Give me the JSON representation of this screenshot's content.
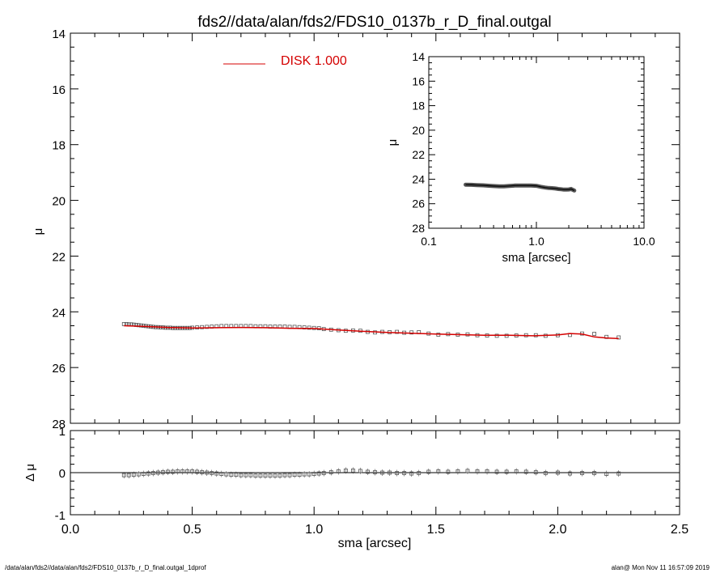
{
  "title": "fds2//data/alan/fds2/FDS10_0137b_r_D_final.outgal",
  "footer": {
    "left": "/data/alan/fds2//data/alan/fds2/FDS10_0137b_r_D_final.outgal_1dprof",
    "right": "alan@  Mon Nov 11 16:57:09 2019"
  },
  "colors": {
    "model": "#d40000",
    "data": "#555555",
    "axes": "#000000"
  },
  "chart_data": [
    {
      "id": "main",
      "type": "line",
      "ylabel": "μ",
      "xlim": [
        0.0,
        2.5
      ],
      "ylim": [
        28,
        14
      ],
      "y_inverted": true,
      "yticks": [
        "14",
        "16",
        "18",
        "20",
        "22",
        "24",
        "26",
        "28"
      ],
      "legend": {
        "label": "DISK  1.000",
        "placement": "top-center"
      },
      "series": [
        {
          "role": "data",
          "marker": "square",
          "x": [
            0.22,
            0.23,
            0.24,
            0.25,
            0.26,
            0.27,
            0.28,
            0.29,
            0.3,
            0.31,
            0.32,
            0.33,
            0.34,
            0.35,
            0.36,
            0.37,
            0.38,
            0.39,
            0.4,
            0.41,
            0.42,
            0.43,
            0.44,
            0.45,
            0.46,
            0.47,
            0.48,
            0.49,
            0.5,
            0.52,
            0.54,
            0.56,
            0.58,
            0.6,
            0.62,
            0.64,
            0.66,
            0.68,
            0.7,
            0.72,
            0.74,
            0.76,
            0.78,
            0.8,
            0.82,
            0.84,
            0.86,
            0.88,
            0.9,
            0.92,
            0.94,
            0.96,
            0.98,
            1.0,
            1.02,
            1.04,
            1.07,
            1.1,
            1.13,
            1.16,
            1.19,
            1.22,
            1.25,
            1.28,
            1.31,
            1.34,
            1.37,
            1.4,
            1.43,
            1.47,
            1.51,
            1.55,
            1.59,
            1.63,
            1.67,
            1.71,
            1.75,
            1.79,
            1.83,
            1.87,
            1.91,
            1.95,
            2.0,
            2.05,
            2.1,
            2.15,
            2.2,
            2.25
          ],
          "y": [
            24.44,
            24.44,
            24.45,
            24.45,
            24.46,
            24.47,
            24.48,
            24.49,
            24.5,
            24.51,
            24.52,
            24.53,
            24.54,
            24.55,
            24.55,
            24.56,
            24.56,
            24.57,
            24.57,
            24.57,
            24.58,
            24.58,
            24.58,
            24.58,
            24.58,
            24.58,
            24.58,
            24.58,
            24.57,
            24.56,
            24.55,
            24.54,
            24.53,
            24.52,
            24.51,
            24.51,
            24.51,
            24.51,
            24.51,
            24.51,
            24.51,
            24.52,
            24.52,
            24.52,
            24.53,
            24.53,
            24.53,
            24.53,
            24.54,
            24.54,
            24.55,
            24.56,
            24.57,
            24.58,
            24.59,
            24.62,
            24.64,
            24.66,
            24.68,
            24.67,
            24.68,
            24.72,
            24.74,
            24.72,
            24.73,
            24.72,
            24.75,
            24.74,
            24.73,
            24.78,
            24.82,
            24.8,
            24.82,
            24.81,
            24.84,
            24.85,
            24.86,
            24.86,
            24.85,
            24.84,
            24.84,
            24.86,
            24.84,
            24.83,
            24.78,
            24.79,
            24.9,
            24.92
          ]
        },
        {
          "role": "model",
          "name": "DISK  1.000",
          "x": [
            0.22,
            0.3,
            0.4,
            0.5,
            0.6,
            0.7,
            0.8,
            0.9,
            1.0,
            1.1,
            1.2,
            1.3,
            1.4,
            1.5,
            1.6,
            1.7,
            1.8,
            1.9,
            2.0,
            2.05,
            2.1,
            2.15,
            2.2,
            2.25
          ],
          "y": [
            24.5,
            24.52,
            24.56,
            24.58,
            24.57,
            24.56,
            24.57,
            24.59,
            24.6,
            24.65,
            24.7,
            24.74,
            24.77,
            24.8,
            24.82,
            24.84,
            24.84,
            24.86,
            24.83,
            24.78,
            24.8,
            24.9,
            24.94,
            24.96
          ]
        }
      ]
    },
    {
      "id": "inset",
      "type": "line",
      "xlabel": "sma [arcsec]",
      "ylabel": "μ",
      "x_scale": "log",
      "xlim": [
        0.1,
        10.0
      ],
      "xticks": [
        "0.1",
        "1.0",
        "10.0"
      ],
      "ylim": [
        28,
        14
      ],
      "y_inverted": true,
      "yticks": [
        "14",
        "16",
        "18",
        "20",
        "22",
        "24",
        "26",
        "28"
      ],
      "series": [
        {
          "role": "data",
          "x": [
            0.22,
            0.25,
            0.28,
            0.32,
            0.36,
            0.4,
            0.45,
            0.5,
            0.56,
            0.63,
            0.71,
            0.8,
            0.89,
            1.0,
            1.1,
            1.2,
            1.3,
            1.4,
            1.5,
            1.6,
            1.7,
            1.8,
            1.9,
            2.0,
            2.1,
            2.2,
            2.25
          ],
          "y": [
            24.45,
            24.46,
            24.48,
            24.5,
            24.53,
            24.56,
            24.58,
            24.58,
            24.55,
            24.52,
            24.51,
            24.51,
            24.52,
            24.54,
            24.62,
            24.68,
            24.72,
            24.73,
            24.76,
            24.8,
            24.82,
            24.85,
            24.85,
            24.84,
            24.8,
            24.88,
            24.92
          ]
        }
      ]
    },
    {
      "id": "residual",
      "type": "scatter",
      "xlabel": "sma [arcsec]",
      "ylabel": "Δ μ",
      "xlim": [
        0.0,
        2.5
      ],
      "xticks": [
        "0.0",
        "0.5",
        "1.0",
        "1.5",
        "2.0",
        "2.5"
      ],
      "ylim": [
        -1,
        1
      ],
      "yticks": [
        "-1",
        "0",
        "1"
      ],
      "zero_line": true,
      "series": [
        {
          "role": "residual",
          "x": [
            0.22,
            0.24,
            0.26,
            0.28,
            0.3,
            0.32,
            0.34,
            0.36,
            0.38,
            0.4,
            0.42,
            0.44,
            0.46,
            0.48,
            0.5,
            0.52,
            0.54,
            0.56,
            0.58,
            0.6,
            0.62,
            0.64,
            0.66,
            0.68,
            0.7,
            0.72,
            0.74,
            0.76,
            0.78,
            0.8,
            0.82,
            0.84,
            0.86,
            0.88,
            0.9,
            0.92,
            0.94,
            0.96,
            0.98,
            1.0,
            1.02,
            1.04,
            1.07,
            1.1,
            1.13,
            1.16,
            1.19,
            1.22,
            1.25,
            1.28,
            1.31,
            1.34,
            1.37,
            1.4,
            1.43,
            1.47,
            1.51,
            1.55,
            1.59,
            1.63,
            1.67,
            1.71,
            1.75,
            1.79,
            1.83,
            1.87,
            1.91,
            1.95,
            2.0,
            2.05,
            2.1,
            2.15,
            2.2,
            2.25
          ],
          "y": [
            -0.06,
            -0.06,
            -0.05,
            -0.04,
            -0.03,
            -0.02,
            -0.01,
            0.0,
            0.01,
            0.02,
            0.02,
            0.03,
            0.03,
            0.03,
            0.03,
            0.02,
            0.01,
            0.0,
            -0.01,
            -0.02,
            -0.03,
            -0.04,
            -0.05,
            -0.05,
            -0.06,
            -0.06,
            -0.06,
            -0.07,
            -0.07,
            -0.07,
            -0.07,
            -0.07,
            -0.07,
            -0.06,
            -0.06,
            -0.05,
            -0.05,
            -0.04,
            -0.04,
            -0.03,
            -0.02,
            -0.01,
            0.01,
            0.03,
            0.05,
            0.05,
            0.04,
            0.02,
            0.01,
            0.0,
            0.0,
            -0.01,
            -0.01,
            -0.02,
            -0.01,
            0.02,
            0.03,
            0.02,
            0.03,
            0.04,
            0.03,
            0.03,
            0.02,
            0.02,
            0.03,
            0.02,
            0.01,
            -0.01,
            0.0,
            -0.02,
            -0.01,
            -0.01,
            -0.03,
            -0.02
          ]
        }
      ]
    }
  ]
}
